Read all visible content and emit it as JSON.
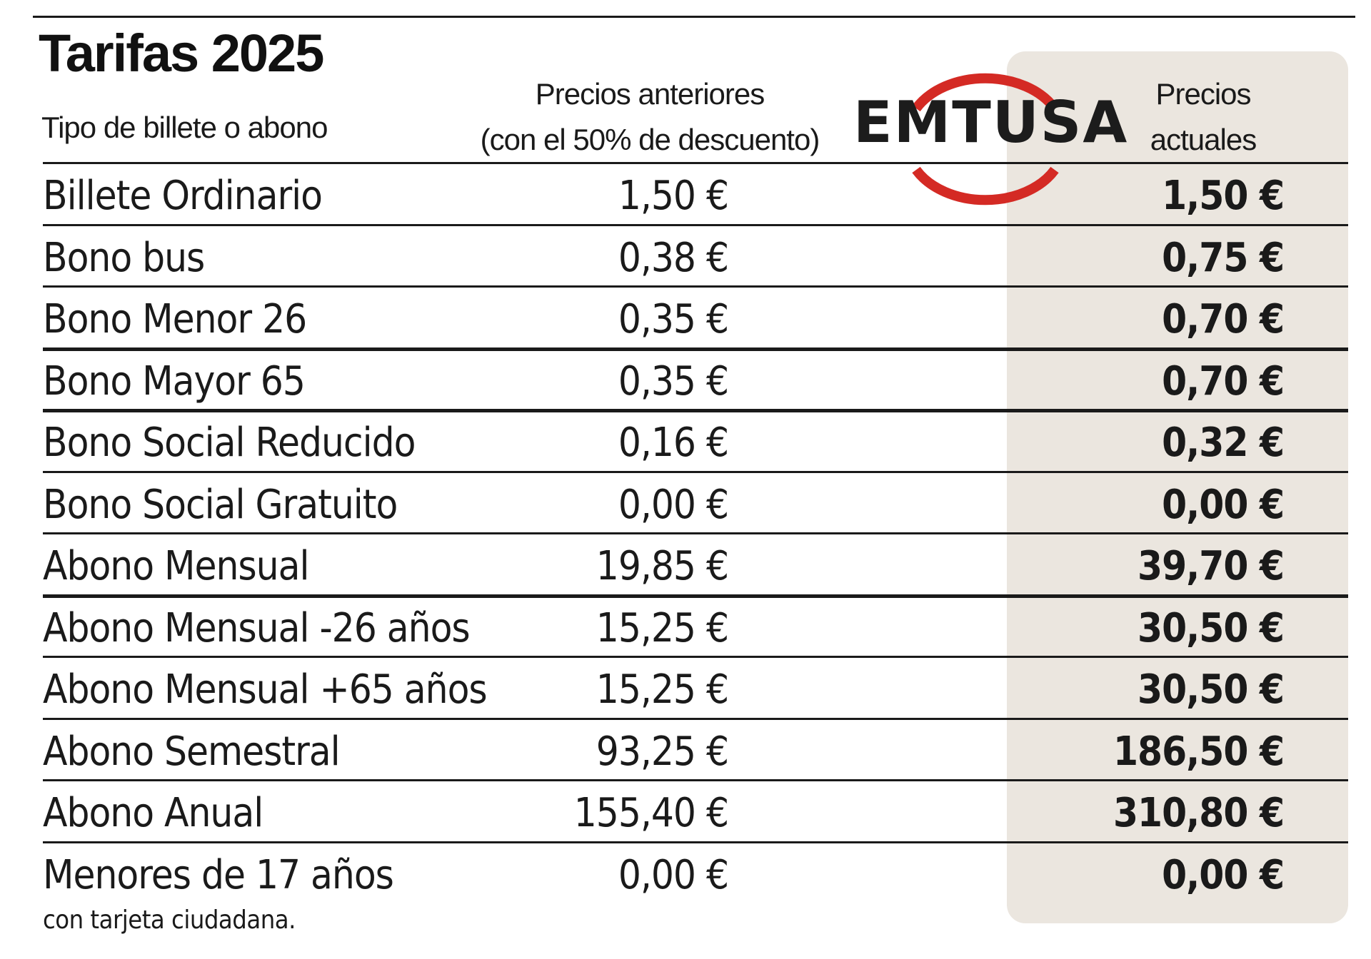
{
  "title": "Tarifas 2025",
  "headers": {
    "type": "Tipo de billete o abono",
    "previous_line1": "Precios anteriores",
    "previous_line2": "(con el 50% de descuento)",
    "current_line1": "Precios",
    "current_line2": "actuales"
  },
  "logo": {
    "text": "EMTUSA",
    "ring_color": "#d42a24"
  },
  "colors": {
    "shade": "#ebe6df",
    "text": "#1a1a1a"
  },
  "rows": [
    {
      "name": "Billete Ordinario",
      "previous": "1,50 €",
      "current": "1,50 €"
    },
    {
      "name": "Bono bus",
      "previous": "0,38 €",
      "current": "0,75 €"
    },
    {
      "name": "Bono Menor 26",
      "previous": "0,35 €",
      "current": "0,70 €"
    },
    {
      "name": "Bono Mayor 65",
      "previous": "0,35 €",
      "current": "0,70 €"
    },
    {
      "name": "Bono Social Reducido",
      "previous": "0,16 €",
      "current": "0,32 €"
    },
    {
      "name": "Bono Social Gratuito",
      "previous": "0,00 €",
      "current": "0,00 €"
    },
    {
      "name": "Abono Mensual",
      "previous": "19,85 €",
      "current": "39,70 €"
    },
    {
      "name": "Abono Mensual -26 años",
      "previous": "15,25 €",
      "current": "30,50 €"
    },
    {
      "name": "Abono Mensual +65 años",
      "previous": "15,25 €",
      "current": "30,50 €"
    },
    {
      "name": "Abono Semestral",
      "previous": "93,25 €",
      "current": "186,50 €"
    },
    {
      "name": "Abono Anual",
      "previous": "155,40 €",
      "current": "310,80 €"
    },
    {
      "name": "Menores de 17 años",
      "previous": "0,00 €",
      "current": "0,00 €"
    }
  ],
  "footnote": "con tarjeta ciudadana."
}
